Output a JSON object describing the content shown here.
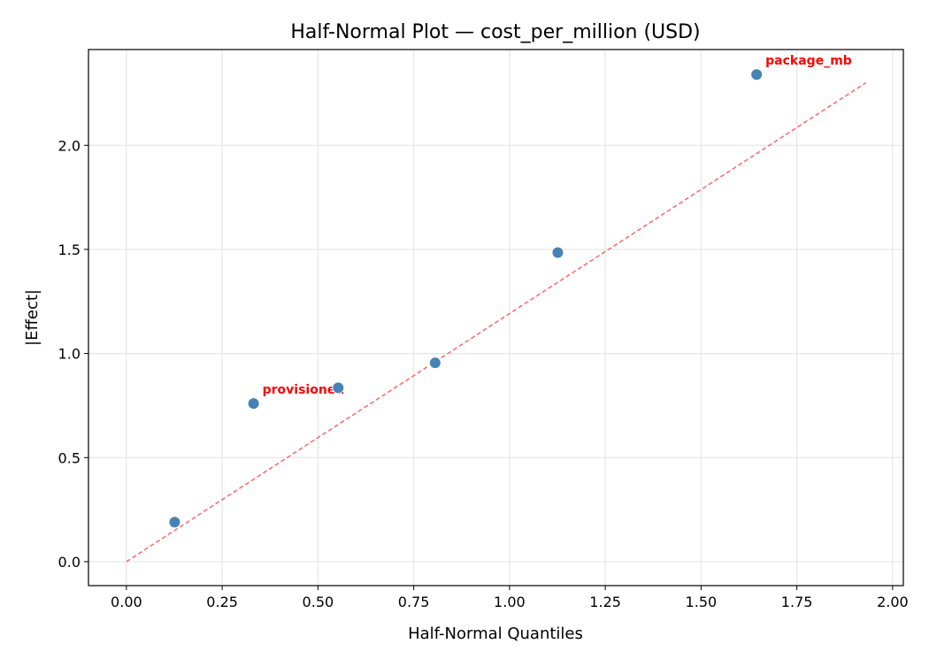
{
  "chart_data": {
    "type": "scatter",
    "title": "Half-Normal Plot — cost_per_million (USD)",
    "xlabel": "Half-Normal Quantiles",
    "ylabel": "|Effect|",
    "xlim": [
      -0.099,
      2.028
    ],
    "ylim": [
      -0.115,
      2.46
    ],
    "grid": true,
    "xticks": [
      0.0,
      0.25,
      0.5,
      0.75,
      1.0,
      1.25,
      1.5,
      1.75,
      2.0
    ],
    "xtick_labels": [
      "0.00",
      "0.25",
      "0.50",
      "0.75",
      "1.00",
      "1.25",
      "1.50",
      "1.75",
      "2.00"
    ],
    "yticks": [
      0.0,
      0.5,
      1.0,
      1.5,
      2.0
    ],
    "ytick_labels": [
      "0.0",
      "0.5",
      "1.0",
      "1.5",
      "2.0"
    ],
    "points": [
      {
        "x": 0.126,
        "y": 0.19,
        "label": ""
      },
      {
        "x": 0.332,
        "y": 0.76,
        "label": "provisioned"
      },
      {
        "x": 0.553,
        "y": 0.835,
        "label": ""
      },
      {
        "x": 0.806,
        "y": 0.955,
        "label": ""
      },
      {
        "x": 1.126,
        "y": 1.485,
        "label": ""
      },
      {
        "x": 1.645,
        "y": 2.34,
        "label": "package_mb"
      }
    ],
    "reference_line": {
      "x": [
        0.0,
        1.93
      ],
      "y": [
        0.0,
        2.3
      ],
      "style": "dashed"
    },
    "colors": {
      "points": "#4682b4",
      "reference_line": "#ff6666",
      "labels": "#ff0000",
      "grid": "#e6e6e6"
    }
  }
}
